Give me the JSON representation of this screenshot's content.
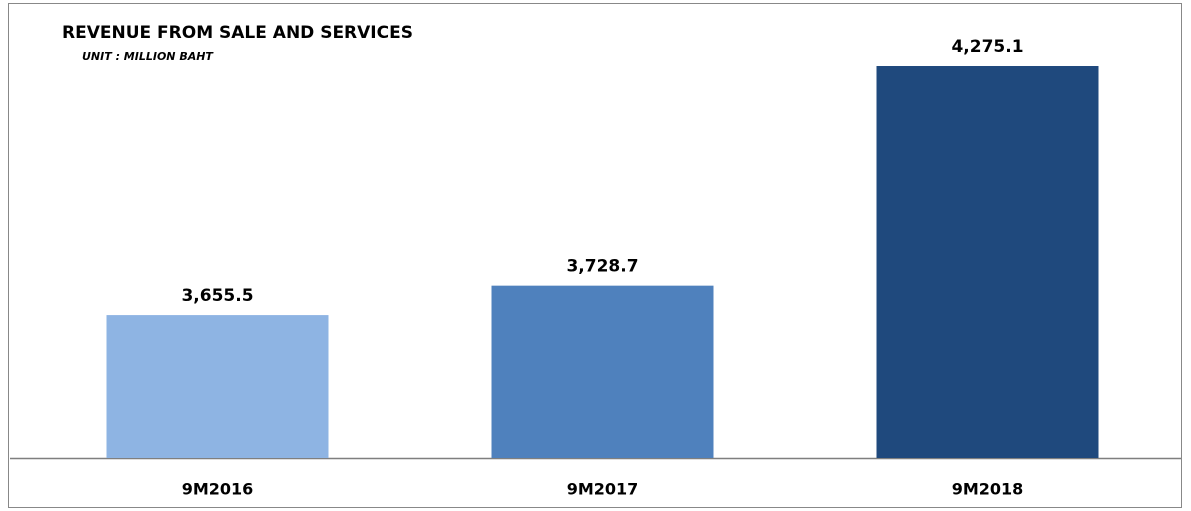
{
  "chart_data": {
    "type": "bar",
    "title": "REVENUE FROM SALE AND SERVICES",
    "subtitle": "UNIT : MILLION BAHT",
    "categories": [
      "9M2016",
      "9M2017",
      "9M2018"
    ],
    "values": [
      3655.5,
      3728.7,
      4275.1
    ],
    "value_labels": [
      "3,655.5",
      "3,728.7",
      "4,275.1"
    ],
    "colors": [
      "#8eb4e3",
      "#4f81bd",
      "#1f497d"
    ],
    "ylim": [
      3300,
      4300
    ]
  }
}
